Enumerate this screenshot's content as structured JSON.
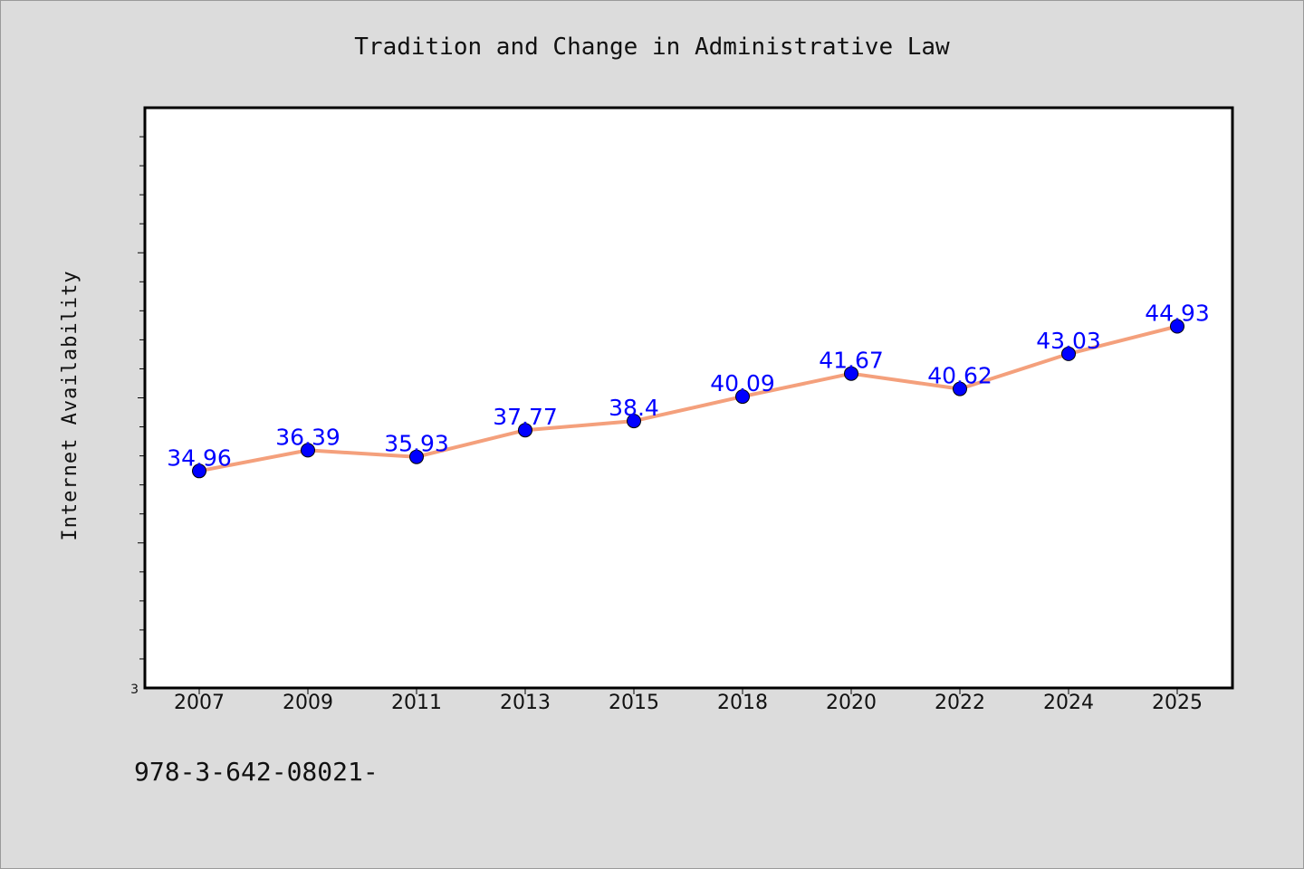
{
  "chart_data": {
    "type": "line",
    "title": "Tradition and Change in Administrative Law",
    "xlabel": "",
    "ylabel": "Internet Availability",
    "categories": [
      "2007",
      "2009",
      "2011",
      "2013",
      "2015",
      "2018",
      "2020",
      "2022",
      "2024",
      "2025"
    ],
    "series": [
      {
        "values": [
          34.96,
          36.39,
          35.93,
          37.77,
          38.4,
          40.09,
          41.67,
          40.62,
          43.03,
          44.93
        ],
        "labels": [
          "34.96",
          "36.39",
          "35.93",
          "37.77",
          "38.4",
          "40.09",
          "41.67",
          "40.62",
          "43.03",
          "44.93"
        ],
        "line_color": "#f4a07c",
        "marker_color": "#0000ff"
      }
    ],
    "ylim": [
      20,
      60
    ],
    "y_min_tick_label": "3",
    "grid": false,
    "footer_text": "978-3-642-08021-"
  },
  "colors": {
    "background": "#dcdcdc",
    "plot_background": "#ffffff",
    "axis": "#000000"
  }
}
